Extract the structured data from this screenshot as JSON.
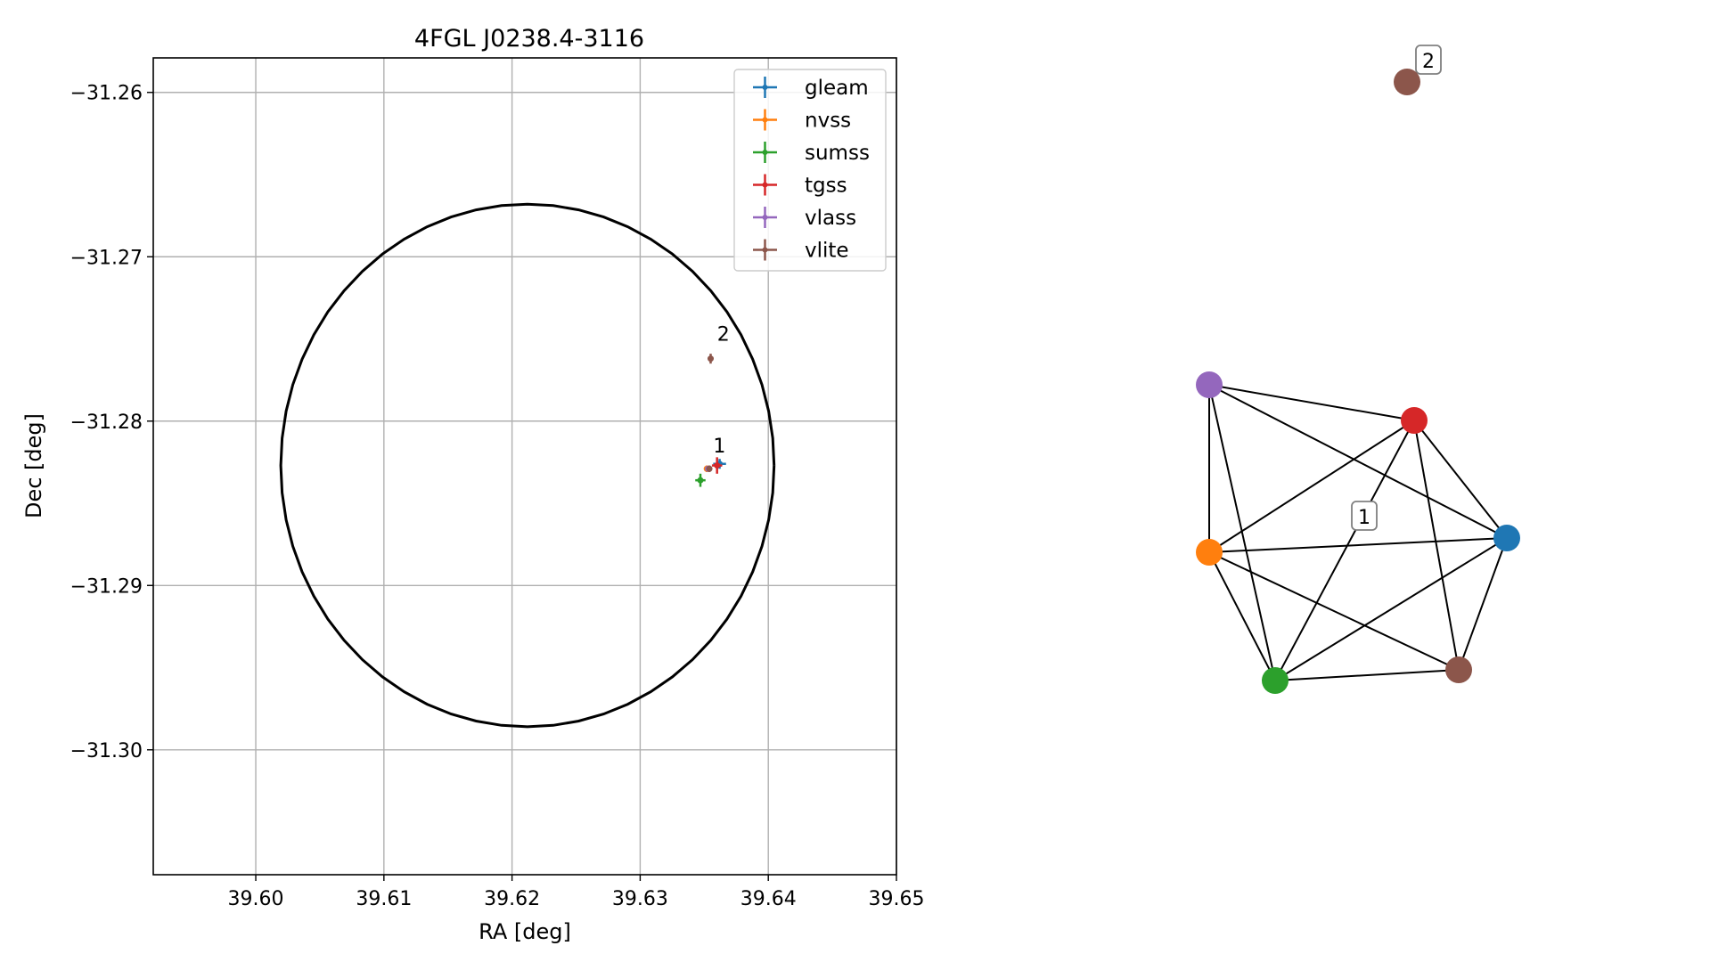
{
  "chart_data": [
    {
      "type": "scatter",
      "title": "4FGL J0238.4-3116",
      "xlabel": "RA [deg]",
      "ylabel": "Dec [deg]",
      "xlim": [
        39.592,
        39.65
      ],
      "ylim": [
        -31.3076,
        -31.2579
      ],
      "x_ticks": [
        39.6,
        39.61,
        39.62,
        39.63,
        39.64,
        39.65
      ],
      "x_tick_labels": [
        "39.60",
        "39.61",
        "39.62",
        "39.63",
        "39.64",
        "39.65"
      ],
      "y_ticks": [
        -31.26,
        -31.27,
        -31.28,
        -31.29,
        -31.3
      ],
      "y_tick_labels": [
        "−31.26",
        "−31.27",
        "−31.28",
        "−31.29",
        "−31.30"
      ],
      "grid": true,
      "legend_position": "top-right",
      "circle": {
        "ra_center": 39.6212,
        "dec_center": -31.2827,
        "ra_radius": 0.01925,
        "dec_radius": 0.0159,
        "color": "#000000"
      },
      "series": [
        {
          "name": "gleam",
          "color": "#1f77b4",
          "points": [
            {
              "ra": 39.6362,
              "dec": -31.2826,
              "ra_err": 0.0005,
              "dec_err": 0.0003
            }
          ]
        },
        {
          "name": "nvss",
          "color": "#ff7f0e",
          "points": [
            {
              "ra": 39.6352,
              "dec": -31.2829,
              "ra_err": 0.0002,
              "dec_err": 0.0002
            }
          ]
        },
        {
          "name": "sumss",
          "color": "#2ca02c",
          "points": [
            {
              "ra": 39.6347,
              "dec": -31.2836,
              "ra_err": 0.0004,
              "dec_err": 0.0004
            }
          ]
        },
        {
          "name": "tgss",
          "color": "#d62728",
          "points": [
            {
              "ra": 39.636,
              "dec": -31.2827,
              "ra_err": 0.0004,
              "dec_err": 0.0005
            }
          ]
        },
        {
          "name": "vlass",
          "color": "#9467bd",
          "points": [
            {
              "ra": 39.6353,
              "dec": -31.2829,
              "ra_err": 0.0001,
              "dec_err": 0.0001
            }
          ]
        },
        {
          "name": "vlite",
          "color": "#8c564b",
          "points": [
            {
              "ra": 39.6354,
              "dec": -31.2829,
              "ra_err": 0.0002,
              "dec_err": 0.0002
            },
            {
              "ra": 39.6355,
              "dec": -31.2762,
              "ra_err": 0.0002,
              "dec_err": 0.0003
            }
          ]
        }
      ],
      "annotations": [
        {
          "text": "1",
          "ra": 39.6357,
          "dec": -31.2819
        },
        {
          "text": "2",
          "ra": 39.636,
          "dec": -31.2751
        }
      ]
    },
    {
      "type": "network",
      "nodes": [
        {
          "id": "gleam",
          "color": "#1f77b4",
          "pos": [
            1.12,
            0.08
          ]
        },
        {
          "id": "nvss",
          "color": "#ff7f0e",
          "pos": [
            -0.55,
            0.0
          ]
        },
        {
          "id": "sumss",
          "color": "#2ca02c",
          "pos": [
            -0.18,
            -0.72
          ]
        },
        {
          "id": "tgss",
          "color": "#d62728",
          "pos": [
            0.6,
            0.74
          ]
        },
        {
          "id": "vlass",
          "color": "#9467bd",
          "pos": [
            -0.55,
            0.94
          ]
        },
        {
          "id": "vlite_1",
          "color": "#8c564b",
          "pos": [
            0.85,
            -0.66
          ]
        },
        {
          "id": "vlite_2",
          "color": "#8c564b",
          "pos": [
            0.56,
            2.64
          ]
        }
      ],
      "edges": [
        [
          "vlass",
          "tgss"
        ],
        [
          "vlass",
          "gleam"
        ],
        [
          "vlass",
          "nvss"
        ],
        [
          "vlass",
          "sumss"
        ],
        [
          "tgss",
          "nvss"
        ],
        [
          "tgss",
          "sumss"
        ],
        [
          "tgss",
          "gleam"
        ],
        [
          "tgss",
          "vlite_1"
        ],
        [
          "nvss",
          "gleam"
        ],
        [
          "nvss",
          "sumss"
        ],
        [
          "nvss",
          "vlite_1"
        ],
        [
          "gleam",
          "sumss"
        ],
        [
          "gleam",
          "vlite_1"
        ],
        [
          "sumss",
          "vlite_1"
        ]
      ],
      "labels": [
        {
          "text": "1",
          "pos": [
            0.32,
            0.2
          ]
        },
        {
          "text": "2",
          "pos": [
            0.68,
            2.76
          ]
        }
      ]
    }
  ]
}
